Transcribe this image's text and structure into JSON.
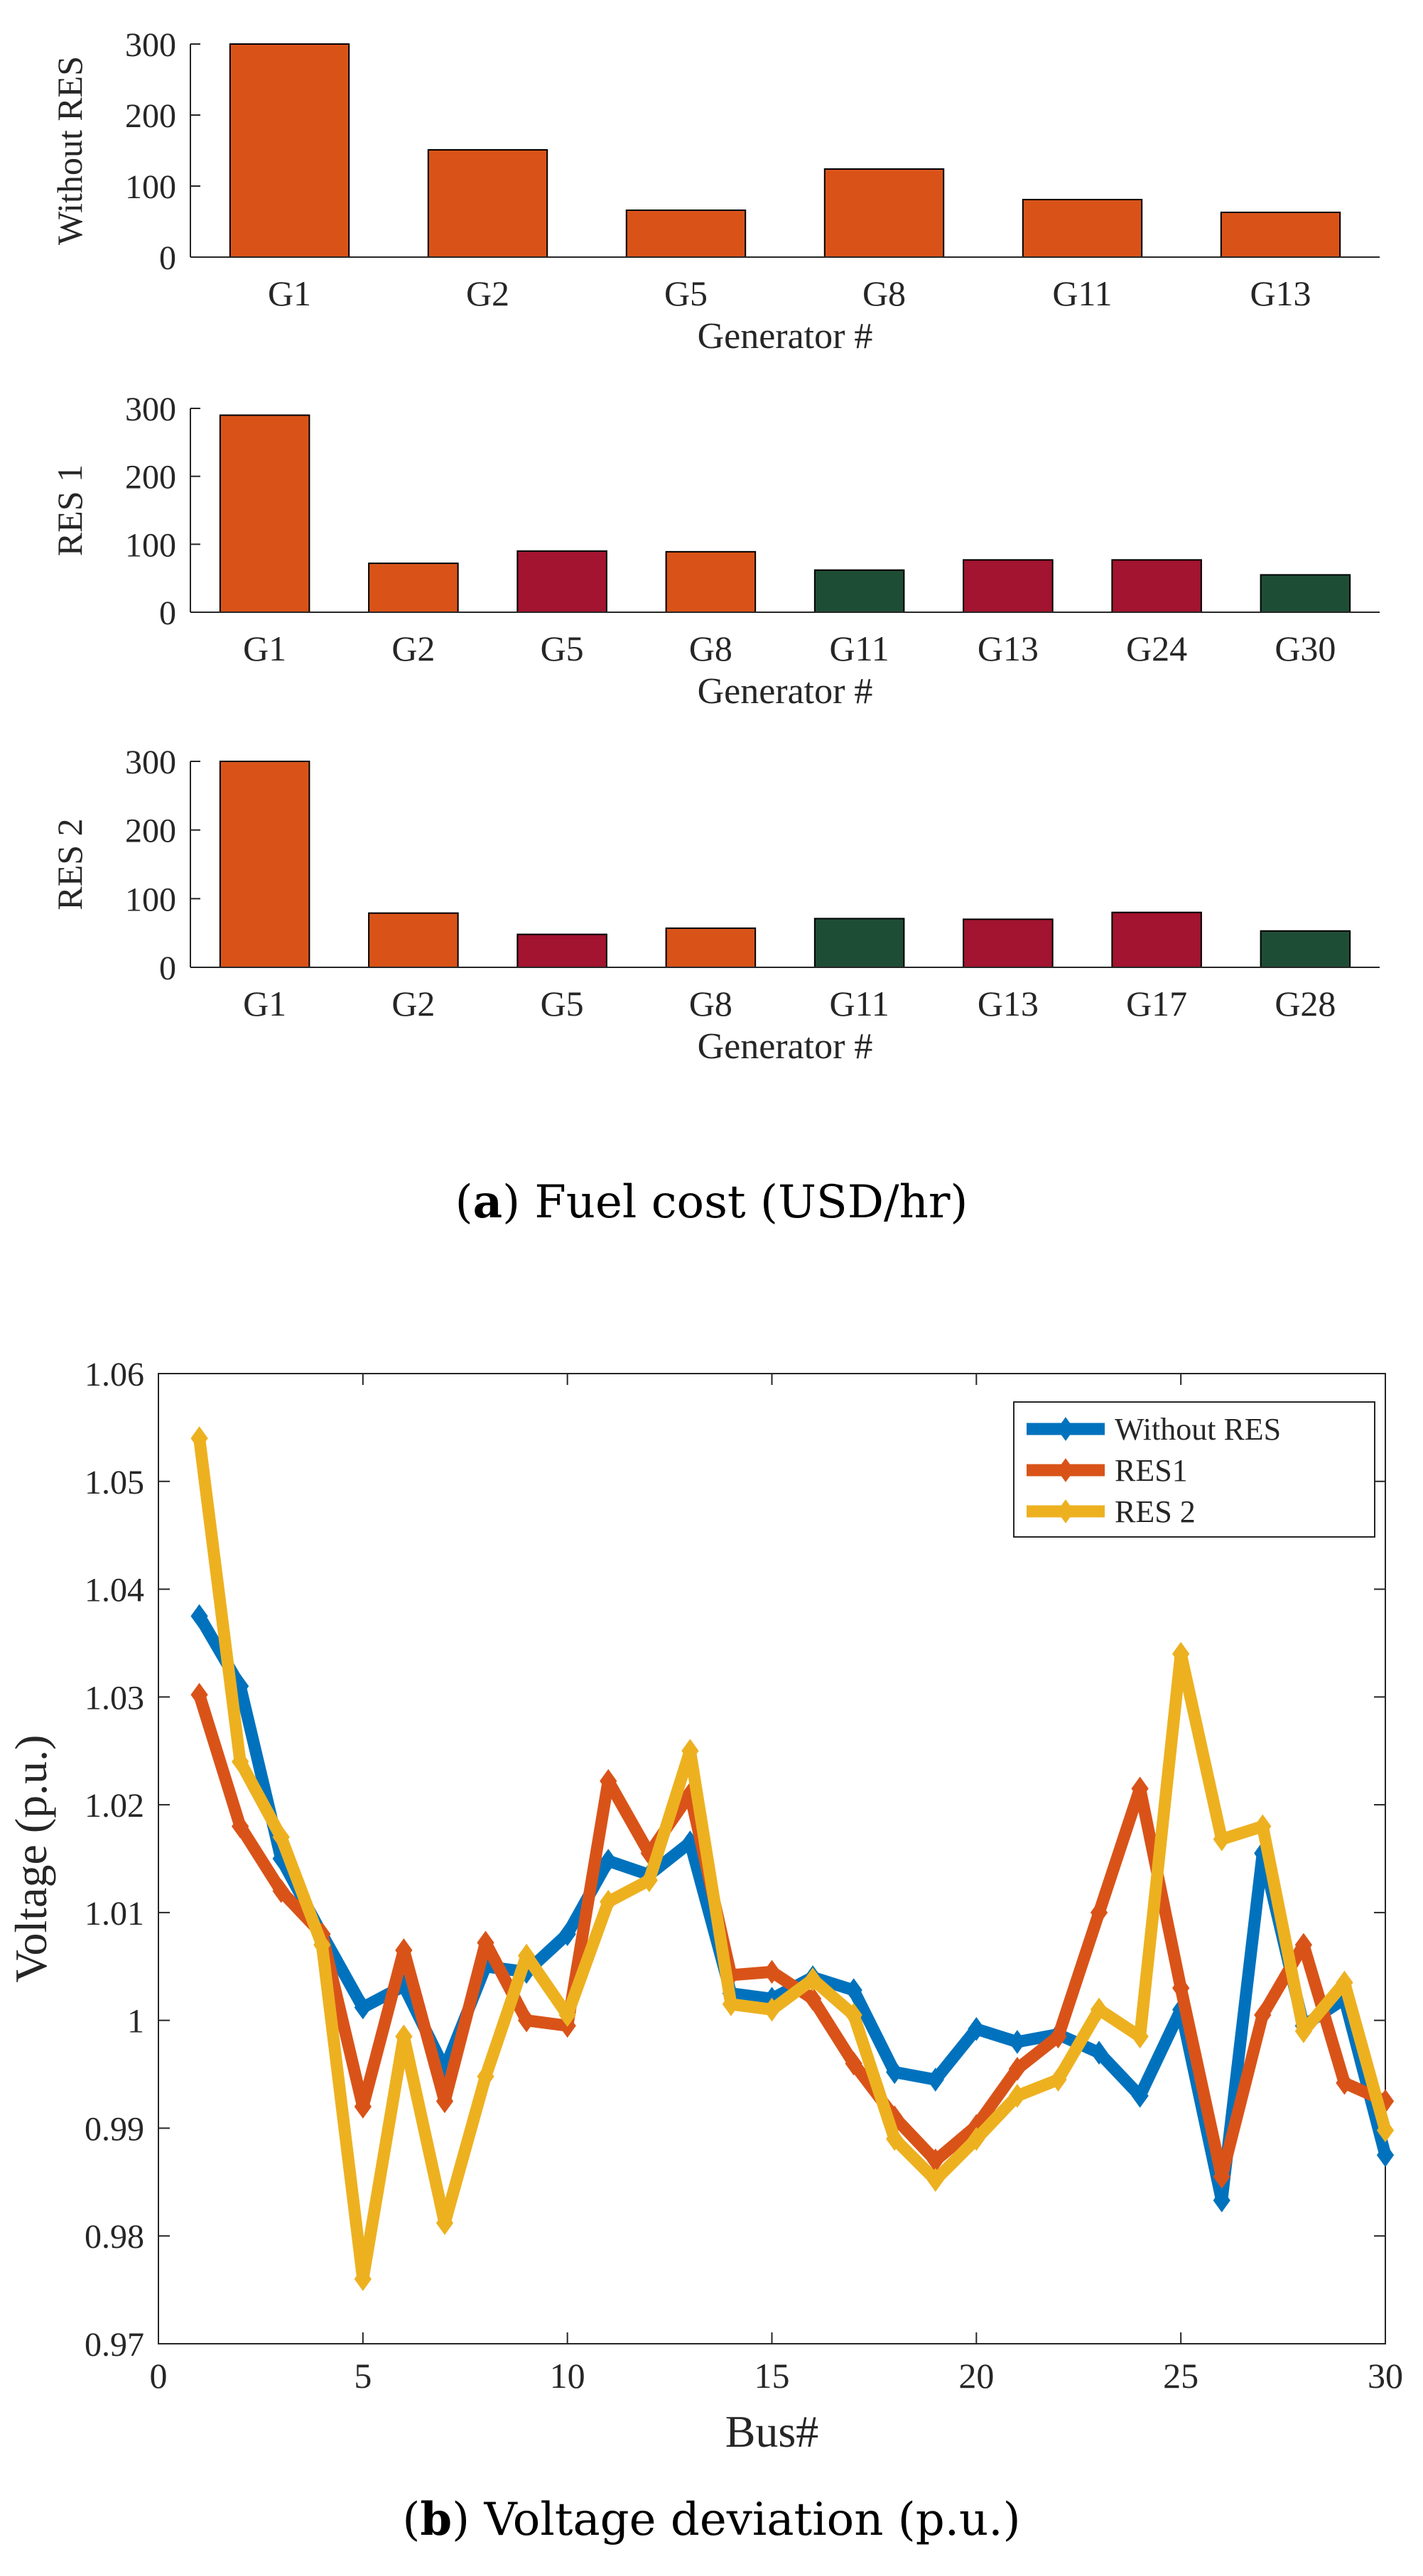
{
  "captions": {
    "a": {
      "label": "a",
      "text": "Fuel cost (USD/hr)"
    },
    "b": {
      "label": "b",
      "text": "Voltage deviation (p.u.)"
    }
  },
  "colors": {
    "conventional": "#D95319",
    "res_red": "#A2142F",
    "res_green": "#1E4D36",
    "without_res": "#0072BD",
    "res1": "#D95319",
    "res2": "#EDB120"
  },
  "chart_data": [
    {
      "type": "bar",
      "ylabel": "Without RES",
      "xlabel": "Generator #",
      "ylim": [
        0,
        300
      ],
      "yticks": [
        0,
        100,
        200,
        300
      ],
      "categories": [
        "G1",
        "G2",
        "G5",
        "G8",
        "G11",
        "G13"
      ],
      "values": [
        300,
        151,
        66,
        124,
        81,
        63
      ],
      "bar_kinds": [
        "conventional",
        "conventional",
        "conventional",
        "conventional",
        "conventional",
        "conventional"
      ]
    },
    {
      "type": "bar",
      "ylabel": "RES 1",
      "xlabel": "Generator #",
      "ylim": [
        0,
        300
      ],
      "yticks": [
        0,
        100,
        200,
        300
      ],
      "categories": [
        "G1",
        "G2",
        "G5",
        "G8",
        "G11",
        "G13",
        "G24",
        "G30"
      ],
      "values": [
        290,
        72,
        90,
        89,
        62,
        77,
        77,
        55
      ],
      "bar_kinds": [
        "conventional",
        "conventional",
        "res_red",
        "conventional",
        "res_green",
        "res_red",
        "res_red",
        "res_green"
      ]
    },
    {
      "type": "bar",
      "ylabel": "RES 2",
      "xlabel": "Generator #",
      "ylim": [
        0,
        300
      ],
      "yticks": [
        0,
        100,
        200,
        300
      ],
      "categories": [
        "G1",
        "G2",
        "G5",
        "G8",
        "G11",
        "G13",
        "G17",
        "G28"
      ],
      "values": [
        300,
        79,
        48,
        57,
        71,
        70,
        80,
        53
      ],
      "bar_kinds": [
        "conventional",
        "conventional",
        "res_red",
        "conventional",
        "res_green",
        "res_red",
        "res_red",
        "res_green"
      ]
    },
    {
      "type": "line",
      "xlabel": "Bus#",
      "ylabel": "Voltage (p.u.)",
      "xlim": [
        0,
        30
      ],
      "ylim": [
        0.97,
        1.06
      ],
      "xticks": [
        0,
        5,
        10,
        15,
        20,
        25,
        30
      ],
      "yticks": [
        0.97,
        0.98,
        0.99,
        1.0,
        1.01,
        1.02,
        1.03,
        1.04,
        1.05,
        1.06
      ],
      "ytick_labels": [
        "0.97",
        "0.98",
        "0.99",
        "1",
        "1.01",
        "1.02",
        "1.03",
        "1.04",
        "1.05",
        "1.06"
      ],
      "legend_position": "top-right",
      "x": [
        1,
        2,
        3,
        4,
        5,
        6,
        7,
        8,
        9,
        10,
        11,
        12,
        13,
        14,
        15,
        16,
        17,
        18,
        19,
        20,
        21,
        22,
        23,
        24,
        25,
        26,
        27,
        28,
        29,
        30
      ],
      "series": [
        {
          "name": "Without RES",
          "color_key": "without_res",
          "values": [
            1.0375,
            1.031,
            1.015,
            1.008,
            1.0012,
            1.0032,
            0.9955,
            1.005,
            1.0045,
            1.008,
            1.0148,
            1.0135,
            1.0165,
            1.0025,
            1.002,
            1.004,
            1.0028,
            0.9952,
            0.9945,
            0.9992,
            0.998,
            0.9987,
            0.997,
            0.993,
            1.001,
            0.9833,
            1.0155,
            0.9995,
            1.002,
            0.9875
          ]
        },
        {
          "name": "RES1",
          "color_key": "res1",
          "values": [
            1.0302,
            1.018,
            1.012,
            1.008,
            0.992,
            1.0065,
            0.9925,
            1.0072,
            1.0,
            0.9995,
            1.0222,
            1.0155,
            1.021,
            1.0042,
            1.0045,
            1.002,
            0.996,
            0.991,
            0.987,
            0.9902,
            0.9955,
            0.9985,
            1.01,
            1.0215,
            1.003,
            0.9855,
            1.0005,
            1.007,
            0.9942,
            0.9925
          ]
        },
        {
          "name": "RES 2",
          "color_key": "res2",
          "values": [
            1.054,
            1.024,
            1.017,
            1.007,
            0.976,
            0.9985,
            0.9812,
            0.9948,
            1.006,
            1.0005,
            1.011,
            1.013,
            1.025,
            1.0015,
            1.001,
            1.0038,
            1.0005,
            0.989,
            0.9852,
            0.989,
            0.993,
            0.9945,
            1.001,
            0.9985,
            1.034,
            1.0168,
            1.018,
            0.999,
            1.0035,
            0.9898
          ]
        }
      ]
    }
  ]
}
